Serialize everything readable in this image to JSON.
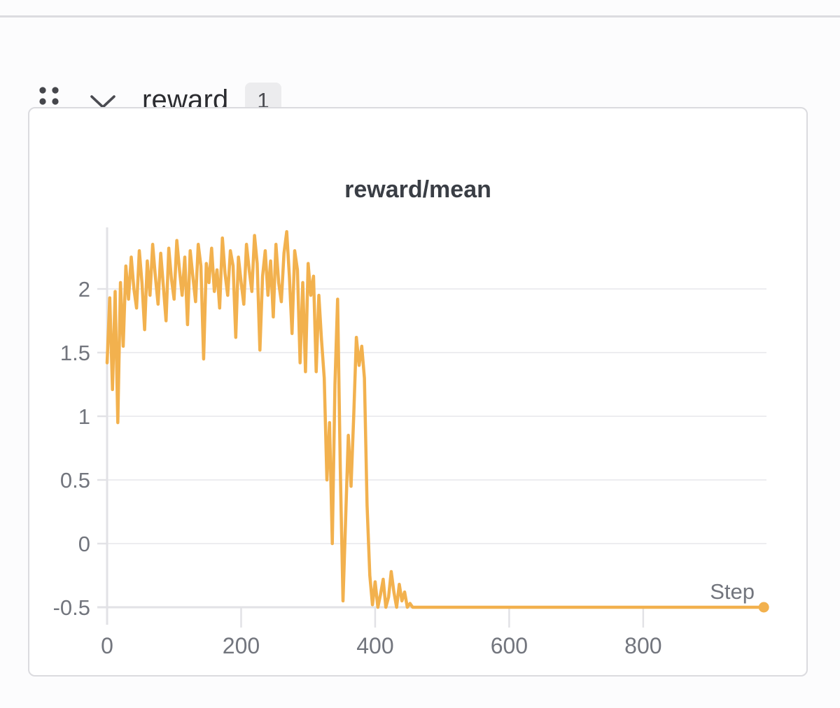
{
  "header": {
    "title": "reward",
    "badge_count": "1"
  },
  "colors": {
    "line": "#F2B14E",
    "gridline": "#EDEDF0",
    "axis": "#E2E2E6",
    "tick_label": "#72757D",
    "title_text": "#3A3E45",
    "header_text": "#2B2C30",
    "badge_bg": "#ECECEE",
    "badge_text": "#4A4B50",
    "icon": "#45464B",
    "card_border": "#DBDBDF",
    "page_bg": "#FCFCFD"
  },
  "chart_data": {
    "type": "line",
    "title": "reward/mean",
    "xlabel": "Step",
    "ylabel": "",
    "x_tick_labels": [
      "0",
      "200",
      "400",
      "600",
      "800"
    ],
    "x_tick_values": [
      0,
      200,
      400,
      600,
      800
    ],
    "y_tick_labels": [
      "2",
      "1.5",
      "1",
      "0.5",
      "0",
      "-0.5"
    ],
    "y_tick_values": [
      2,
      1.5,
      1,
      0.5,
      0,
      -0.5
    ],
    "xlim": [
      0,
      984
    ],
    "ylim": [
      -0.55,
      2.48
    ],
    "grid": "horizontal",
    "legend": "none",
    "end_marker": true,
    "series": [
      {
        "name": "reward/mean",
        "color": "#F2B14E",
        "x": [
          0,
          4,
          8,
          12,
          16,
          20,
          24,
          28,
          32,
          36,
          40,
          44,
          48,
          52,
          56,
          60,
          64,
          68,
          72,
          76,
          80,
          84,
          88,
          92,
          96,
          100,
          104,
          108,
          112,
          116,
          120,
          124,
          128,
          132,
          136,
          140,
          144,
          148,
          152,
          156,
          160,
          164,
          168,
          172,
          176,
          180,
          184,
          188,
          192,
          196,
          200,
          204,
          208,
          212,
          216,
          220,
          224,
          228,
          232,
          236,
          240,
          244,
          248,
          252,
          256,
          260,
          264,
          268,
          272,
          276,
          280,
          284,
          288,
          292,
          296,
          300,
          304,
          308,
          312,
          316,
          320,
          324,
          328,
          332,
          336,
          340,
          344,
          348,
          352,
          356,
          360,
          364,
          368,
          372,
          376,
          380,
          384,
          388,
          392,
          396,
          400,
          404,
          408,
          412,
          416,
          420,
          424,
          428,
          432,
          436,
          440,
          444,
          448,
          452,
          456,
          480,
          520,
          560,
          600,
          640,
          680,
          720,
          760,
          800,
          840,
          880,
          920,
          960,
          980
        ],
        "y": [
          1.42,
          1.93,
          1.21,
          1.98,
          0.95,
          2.05,
          1.55,
          2.18,
          1.92,
          2.25,
          2.0,
          1.85,
          2.3,
          2.05,
          1.68,
          2.22,
          1.95,
          2.35,
          2.1,
          1.88,
          2.28,
          2.02,
          1.75,
          2.32,
          2.08,
          1.92,
          2.38,
          2.15,
          1.95,
          2.25,
          1.72,
          2.3,
          2.1,
          1.9,
          2.35,
          2.18,
          1.45,
          2.2,
          2.05,
          2.32,
          1.98,
          2.15,
          1.85,
          2.4,
          2.12,
          1.95,
          2.3,
          2.18,
          1.62,
          2.25,
          2.05,
          1.88,
          2.35,
          2.15,
          1.98,
          2.42,
          2.2,
          1.52,
          2.1,
          2.3,
          1.95,
          2.22,
          1.78,
          2.35,
          2.05,
          1.9,
          2.28,
          2.45,
          2.1,
          1.65,
          2.3,
          2.15,
          1.42,
          2.05,
          1.35,
          2.2,
          1.95,
          2.1,
          1.35,
          1.95,
          1.6,
          1.3,
          0.5,
          0.95,
          0,
          1.25,
          1.92,
          0.6,
          -0.45,
          0.2,
          0.85,
          0.45,
          1.0,
          1.62,
          1.4,
          1.55,
          1.3,
          0.3,
          -0.25,
          -0.48,
          -0.3,
          -0.5,
          -0.4,
          -0.28,
          -0.5,
          -0.42,
          -0.22,
          -0.38,
          -0.5,
          -0.32,
          -0.45,
          -0.38,
          -0.5,
          -0.47,
          -0.5,
          -0.5,
          -0.5,
          -0.5,
          -0.5,
          -0.5,
          -0.5,
          -0.5,
          -0.5,
          -0.5,
          -0.5,
          -0.5,
          -0.5,
          -0.5,
          -0.5
        ]
      }
    ]
  }
}
